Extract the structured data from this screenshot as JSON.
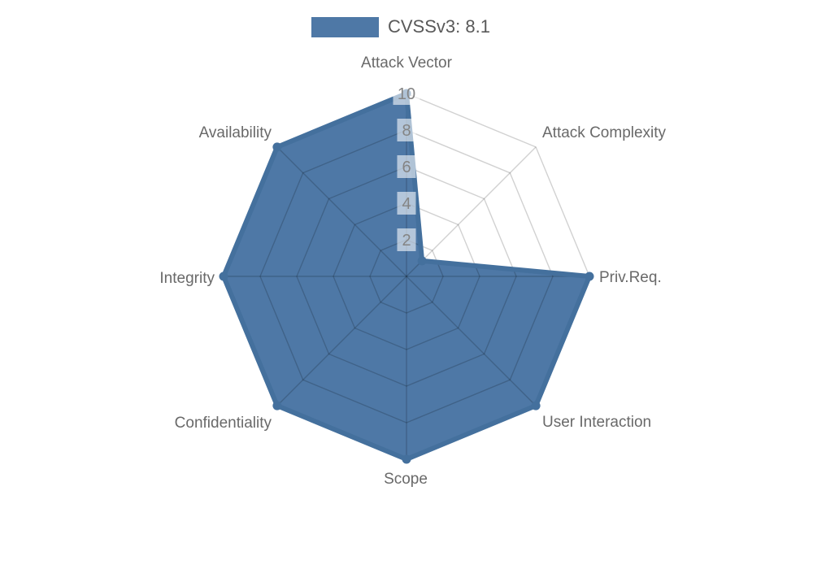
{
  "legend": {
    "label": "CVSSv3: 8.1",
    "swatch_color": "#4e78a6"
  },
  "chart_data": {
    "type": "radar",
    "categories": [
      "Attack Vector",
      "Attack Complexity",
      "Priv.Req.",
      "User Interaction",
      "Scope",
      "Confidentiality",
      "Integrity",
      "Availability"
    ],
    "series": [
      {
        "name": "CVSSv3: 8.1",
        "color": "#4e78a6",
        "values": [
          10,
          1.2,
          10,
          10,
          10,
          10,
          10,
          10
        ]
      }
    ],
    "radial_axis": {
      "min": 0,
      "max": 10,
      "ticks": [
        2,
        4,
        6,
        8,
        10
      ]
    },
    "grid": "spider-web octagon rings with 8 spokes",
    "legend_position": "top-center",
    "title": ""
  },
  "colors": {
    "series_fill": "#4e78a6",
    "series_stroke": "#44709d",
    "grid_line": "rgba(0,0,0,0.18)",
    "axis_label": "#696969",
    "tick_label": "#848484",
    "tick_box": "rgba(255,255,255,0.58)",
    "legend_text": "#595959",
    "background": "#ffffff"
  }
}
